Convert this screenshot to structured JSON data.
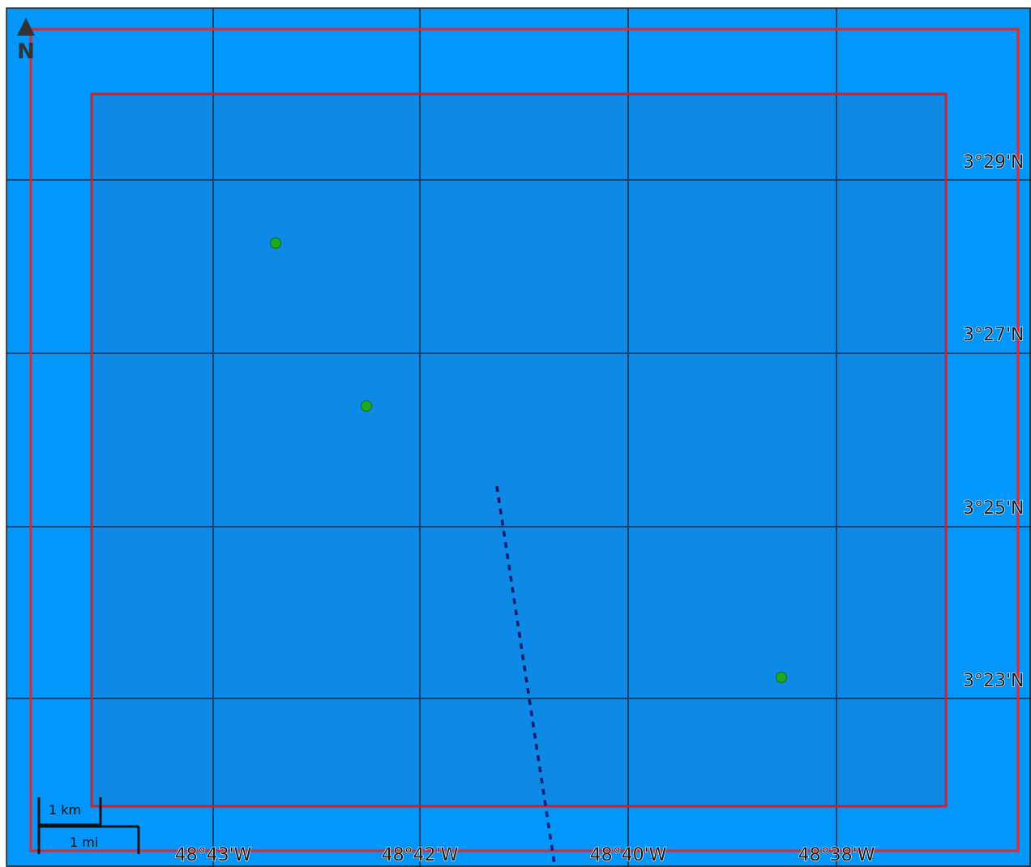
{
  "map": {
    "colors": {
      "water": "#0396fb",
      "area_fill": "#0e8ae6",
      "boundary": "#e8252a",
      "grid_line": "#16375a",
      "route": "#141b6a",
      "point": "#1faa1f",
      "north_arrow": "#333333"
    },
    "graticule": {
      "longitude_labels": [
        "48°43'W",
        "48°42'W",
        "48°40'W",
        "48°38'W"
      ],
      "latitude_labels": [
        "3°29'N",
        "3°27'N",
        "3°25'N",
        "3°23'N"
      ]
    },
    "north_arrow": {
      "label": "N",
      "icon": "north-arrow-icon"
    },
    "scale_bar": {
      "km_label": "1 km",
      "mi_label": "1 mi"
    },
    "features": {
      "points": [
        {
          "icon": "green-dot-icon"
        },
        {
          "icon": "green-dot-icon"
        },
        {
          "icon": "green-dot-icon"
        }
      ],
      "route_style": "dashed"
    }
  }
}
